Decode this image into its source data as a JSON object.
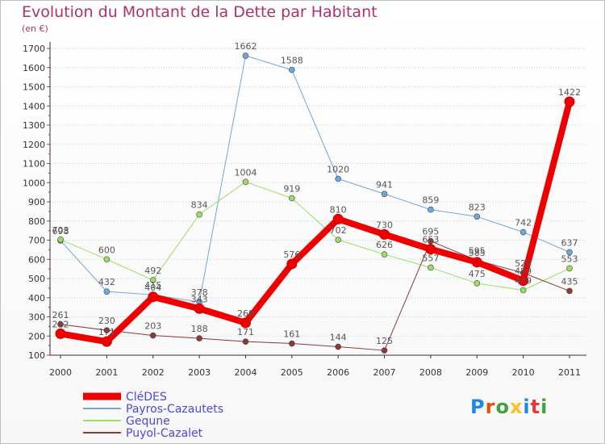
{
  "title": "Evolution du Montant de la Dette par Habitant",
  "subtitle": "(en €)",
  "logo": "Proxiti",
  "chart_data": {
    "type": "line",
    "x": [
      "2000",
      "2001",
      "2002",
      "2003",
      "2004",
      "2005",
      "2006",
      "2007",
      "2008",
      "2009",
      "2010",
      "2011"
    ],
    "yticks": [
      100,
      200,
      300,
      400,
      500,
      600,
      700,
      800,
      900,
      1000,
      1100,
      1200,
      1300,
      1400,
      1500,
      1600,
      1700
    ],
    "ylim": [
      100,
      1700
    ],
    "grid": "horizontal dashed",
    "legend_position": "bottom-left",
    "series": [
      {
        "name": "CléDES",
        "color": "#ee0000",
        "width": 8,
        "marker": 6,
        "values": [
          212,
          171,
          404,
          343,
          269,
          576,
          810,
          730,
          653,
          585,
          489,
          1422
        ]
      },
      {
        "name": "Payros-Cazautets",
        "color": "#6fa8d8",
        "width": 1,
        "marker": 3.5,
        "values": [
          698,
          432,
          415,
          378,
          1662,
          1588,
          1020,
          941,
          859,
          823,
          742,
          637
        ]
      },
      {
        "name": "Gequne",
        "color": "#99dd66",
        "width": 1,
        "marker": 3.5,
        "values": [
          703,
          600,
          492,
          834,
          1004,
          919,
          702,
          626,
          557,
          475,
          439,
          553
        ]
      },
      {
        "name": "Puyol-Cazalet",
        "color": "#8b3a3a",
        "width": 1,
        "marker": 3.5,
        "values": [
          261,
          230,
          203,
          188,
          171,
          161,
          144,
          125,
          695,
          595,
          529,
          435
        ]
      }
    ],
    "labels": [
      {
        "s": 1,
        "i": 0,
        "text": "698"
      },
      {
        "s": 1,
        "i": 1,
        "text": "432"
      },
      {
        "s": 1,
        "i": 2,
        "text": "415"
      },
      {
        "s": 1,
        "i": 3,
        "text": "378"
      },
      {
        "s": 1,
        "i": 4,
        "text": "1662"
      },
      {
        "s": 1,
        "i": 5,
        "text": "1588"
      },
      {
        "s": 1,
        "i": 6,
        "text": "1020"
      },
      {
        "s": 1,
        "i": 7,
        "text": "941"
      },
      {
        "s": 1,
        "i": 8,
        "text": "859"
      },
      {
        "s": 1,
        "i": 9,
        "text": "823"
      },
      {
        "s": 1,
        "i": 10,
        "text": "742"
      },
      {
        "s": 1,
        "i": 11,
        "text": "637"
      },
      {
        "s": 2,
        "i": 0,
        "text": "703"
      },
      {
        "s": 2,
        "i": 1,
        "text": "600"
      },
      {
        "s": 2,
        "i": 2,
        "text": "492"
      },
      {
        "s": 2,
        "i": 3,
        "text": "834"
      },
      {
        "s": 2,
        "i": 4,
        "text": "1004"
      },
      {
        "s": 2,
        "i": 5,
        "text": "919"
      },
      {
        "s": 2,
        "i": 6,
        "text": "702"
      },
      {
        "s": 2,
        "i": 7,
        "text": "626"
      },
      {
        "s": 2,
        "i": 8,
        "text": "557"
      },
      {
        "s": 2,
        "i": 9,
        "text": "475"
      },
      {
        "s": 2,
        "i": 10,
        "text": "439"
      },
      {
        "s": 2,
        "i": 11,
        "text": "553"
      },
      {
        "s": 3,
        "i": 0,
        "text": "261"
      },
      {
        "s": 3,
        "i": 1,
        "text": "230"
      },
      {
        "s": 3,
        "i": 2,
        "text": "203"
      },
      {
        "s": 3,
        "i": 3,
        "text": "188"
      },
      {
        "s": 3,
        "i": 4,
        "text": "171"
      },
      {
        "s": 3,
        "i": 5,
        "text": "161"
      },
      {
        "s": 3,
        "i": 6,
        "text": "144"
      },
      {
        "s": 3,
        "i": 7,
        "text": "125"
      },
      {
        "s": 3,
        "i": 8,
        "text": "695"
      },
      {
        "s": 3,
        "i": 9,
        "text": "595"
      },
      {
        "s": 3,
        "i": 10,
        "text": "529"
      },
      {
        "s": 3,
        "i": 11,
        "text": "435"
      },
      {
        "s": 0,
        "i": 0,
        "text": "212"
      },
      {
        "s": 0,
        "i": 1,
        "text": "171"
      },
      {
        "s": 0,
        "i": 2,
        "text": "404"
      },
      {
        "s": 0,
        "i": 3,
        "text": "343"
      },
      {
        "s": 0,
        "i": 4,
        "text": "269"
      },
      {
        "s": 0,
        "i": 5,
        "text": "576"
      },
      {
        "s": 0,
        "i": 6,
        "text": "810"
      },
      {
        "s": 0,
        "i": 7,
        "text": "730"
      },
      {
        "s": 0,
        "i": 8,
        "text": "653"
      },
      {
        "s": 0,
        "i": 9,
        "text": "585"
      },
      {
        "s": 0,
        "i": 10,
        "text": "489"
      },
      {
        "s": 0,
        "i": 11,
        "text": "1422"
      }
    ]
  }
}
